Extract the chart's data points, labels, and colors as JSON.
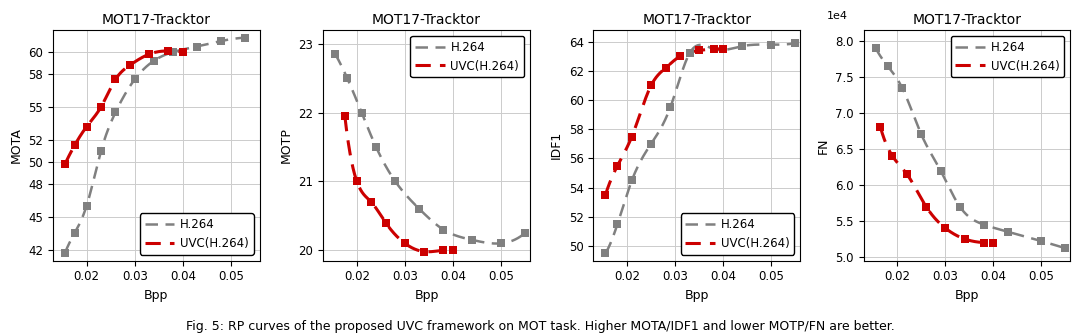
{
  "title": "MOT17-Tracktor",
  "caption": "Fig. 5: RP curves of the proposed UVC framework on MOT task. Higher MOTA/IDF1 and lower MOTP/FN are better.",
  "line_gray_label": "H.264",
  "line_red_label": "UVC(H.264)",
  "gray_color": "#808080",
  "red_color": "#cc0000",
  "plots": [
    {
      "ylabel": "MOTA",
      "xlabel": "Bpp",
      "ylim": [
        41.0,
        62.0
      ],
      "yticks": [
        42,
        45,
        48,
        50,
        52,
        55,
        58,
        60
      ],
      "xlim": [
        0.013,
        0.056
      ],
      "xticks": [
        0.02,
        0.03,
        0.04,
        0.05
      ],
      "legend_loc": "lower right",
      "gray_x": [
        0.0155,
        0.0175,
        0.02,
        0.023,
        0.026,
        0.03,
        0.034,
        0.038,
        0.043,
        0.048,
        0.053
      ],
      "gray_y": [
        41.7,
        43.5,
        46.0,
        51.0,
        54.5,
        57.5,
        59.2,
        60.0,
        60.5,
        61.0,
        61.3
      ],
      "red_x": [
        0.0155,
        0.0175,
        0.02,
        0.023,
        0.026,
        0.029,
        0.033,
        0.037,
        0.04
      ],
      "red_y": [
        49.8,
        51.5,
        53.2,
        55.0,
        57.5,
        58.8,
        59.8,
        60.1,
        60.0
      ]
    },
    {
      "ylabel": "MOTP",
      "xlabel": "Bpp",
      "ylim": [
        19.85,
        23.2
      ],
      "yticks": [
        20,
        21,
        22,
        23
      ],
      "xlim": [
        0.013,
        0.056
      ],
      "xticks": [
        0.02,
        0.03,
        0.04,
        0.05
      ],
      "legend_loc": "upper right",
      "gray_x": [
        0.0155,
        0.018,
        0.021,
        0.024,
        0.028,
        0.033,
        0.038,
        0.044,
        0.05,
        0.055
      ],
      "gray_y": [
        22.85,
        22.5,
        22.0,
        21.5,
        21.0,
        20.6,
        20.3,
        20.15,
        20.1,
        20.25
      ],
      "red_x": [
        0.0175,
        0.02,
        0.023,
        0.026,
        0.03,
        0.034,
        0.038,
        0.04
      ],
      "red_y": [
        21.95,
        21.0,
        20.7,
        20.4,
        20.1,
        19.98,
        20.0,
        20.0
      ]
    },
    {
      "ylabel": "IDF1",
      "xlabel": "Bpp",
      "ylim": [
        49.0,
        64.8
      ],
      "yticks": [
        50,
        52,
        54,
        56,
        58,
        60,
        62,
        64
      ],
      "xlim": [
        0.013,
        0.056
      ],
      "xticks": [
        0.02,
        0.03,
        0.04,
        0.05
      ],
      "legend_loc": "lower right",
      "gray_x": [
        0.0155,
        0.018,
        0.021,
        0.025,
        0.029,
        0.033,
        0.038,
        0.044,
        0.05,
        0.055
      ],
      "gray_y": [
        49.5,
        51.5,
        54.5,
        57.0,
        59.5,
        63.2,
        63.5,
        63.7,
        63.8,
        63.9
      ],
      "red_x": [
        0.0155,
        0.018,
        0.021,
        0.025,
        0.028,
        0.031,
        0.035,
        0.038,
        0.04
      ],
      "red_y": [
        53.5,
        55.5,
        57.5,
        61.0,
        62.2,
        63.0,
        63.4,
        63.5,
        63.5
      ]
    },
    {
      "ylabel": "FN",
      "xlabel": "Bpp",
      "ylim": [
        49500.0,
        81500.0
      ],
      "yticks": [
        50000.0,
        55000.0,
        60000.0,
        65000.0,
        70000.0,
        75000.0,
        80000.0
      ],
      "xlim": [
        0.013,
        0.056
      ],
      "xticks": [
        0.02,
        0.03,
        0.04,
        0.05
      ],
      "legend_loc": "upper right",
      "scale": 10000.0,
      "gray_x": [
        0.0155,
        0.018,
        0.021,
        0.025,
        0.029,
        0.033,
        0.038,
        0.043,
        0.05,
        0.055
      ],
      "gray_y": [
        79000,
        76500,
        73500,
        67000,
        62000,
        57000,
        54500,
        53500,
        52200,
        51200
      ],
      "red_x": [
        0.0165,
        0.019,
        0.022,
        0.026,
        0.03,
        0.034,
        0.038,
        0.04
      ],
      "red_y": [
        68000,
        64000,
        61500,
        57000,
        54000,
        52500,
        52000,
        52000
      ]
    }
  ]
}
